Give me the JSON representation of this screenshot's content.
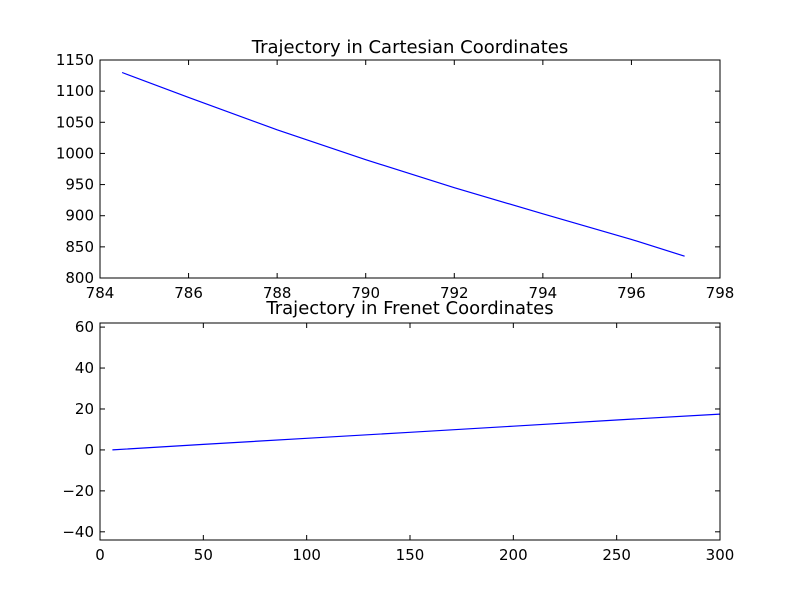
{
  "chart_data": [
    {
      "type": "line",
      "title": "Trajectory in Cartesian Coordinates",
      "xlabel": "",
      "ylabel": "",
      "xlim": [
        784,
        798
      ],
      "ylim": [
        800,
        1150
      ],
      "xticks": [
        784,
        786,
        788,
        790,
        792,
        794,
        796,
        798
      ],
      "yticks": [
        800,
        850,
        900,
        950,
        1000,
        1050,
        1100,
        1150
      ],
      "x_tick_labels": [
        "784",
        "786",
        "788",
        "790",
        "792",
        "794",
        "796",
        "798"
      ],
      "y_tick_labels": [
        "800",
        "850",
        "900",
        "950",
        "1000",
        "1050",
        "1100",
        "1150"
      ],
      "grid": false,
      "series": [
        {
          "color": "#0000ff",
          "x": [
            784.5,
            786,
            788,
            790,
            792,
            794,
            796,
            797.2
          ],
          "y": [
            1130,
            1090,
            1038,
            990,
            945,
            903,
            862,
            835
          ]
        }
      ]
    },
    {
      "type": "line",
      "title": "Trajectory in Frenet Coordinates",
      "xlabel": "",
      "ylabel": "",
      "xlim": [
        0,
        300
      ],
      "ylim": [
        -44,
        62
      ],
      "xticks": [
        0,
        50,
        100,
        150,
        200,
        250,
        300
      ],
      "yticks": [
        -40,
        -20,
        0,
        20,
        40,
        60
      ],
      "x_tick_labels": [
        "0",
        "50",
        "100",
        "150",
        "200",
        "250",
        "300"
      ],
      "y_tick_labels": [
        "−40",
        "−20",
        "0",
        "20",
        "40",
        "60"
      ],
      "grid": false,
      "series": [
        {
          "color": "#0000ff",
          "x": [
            6,
            50,
            100,
            150,
            200,
            250,
            300
          ],
          "y": [
            0,
            2.7,
            5.7,
            8.6,
            11.6,
            14.6,
            17.5
          ]
        }
      ]
    }
  ]
}
